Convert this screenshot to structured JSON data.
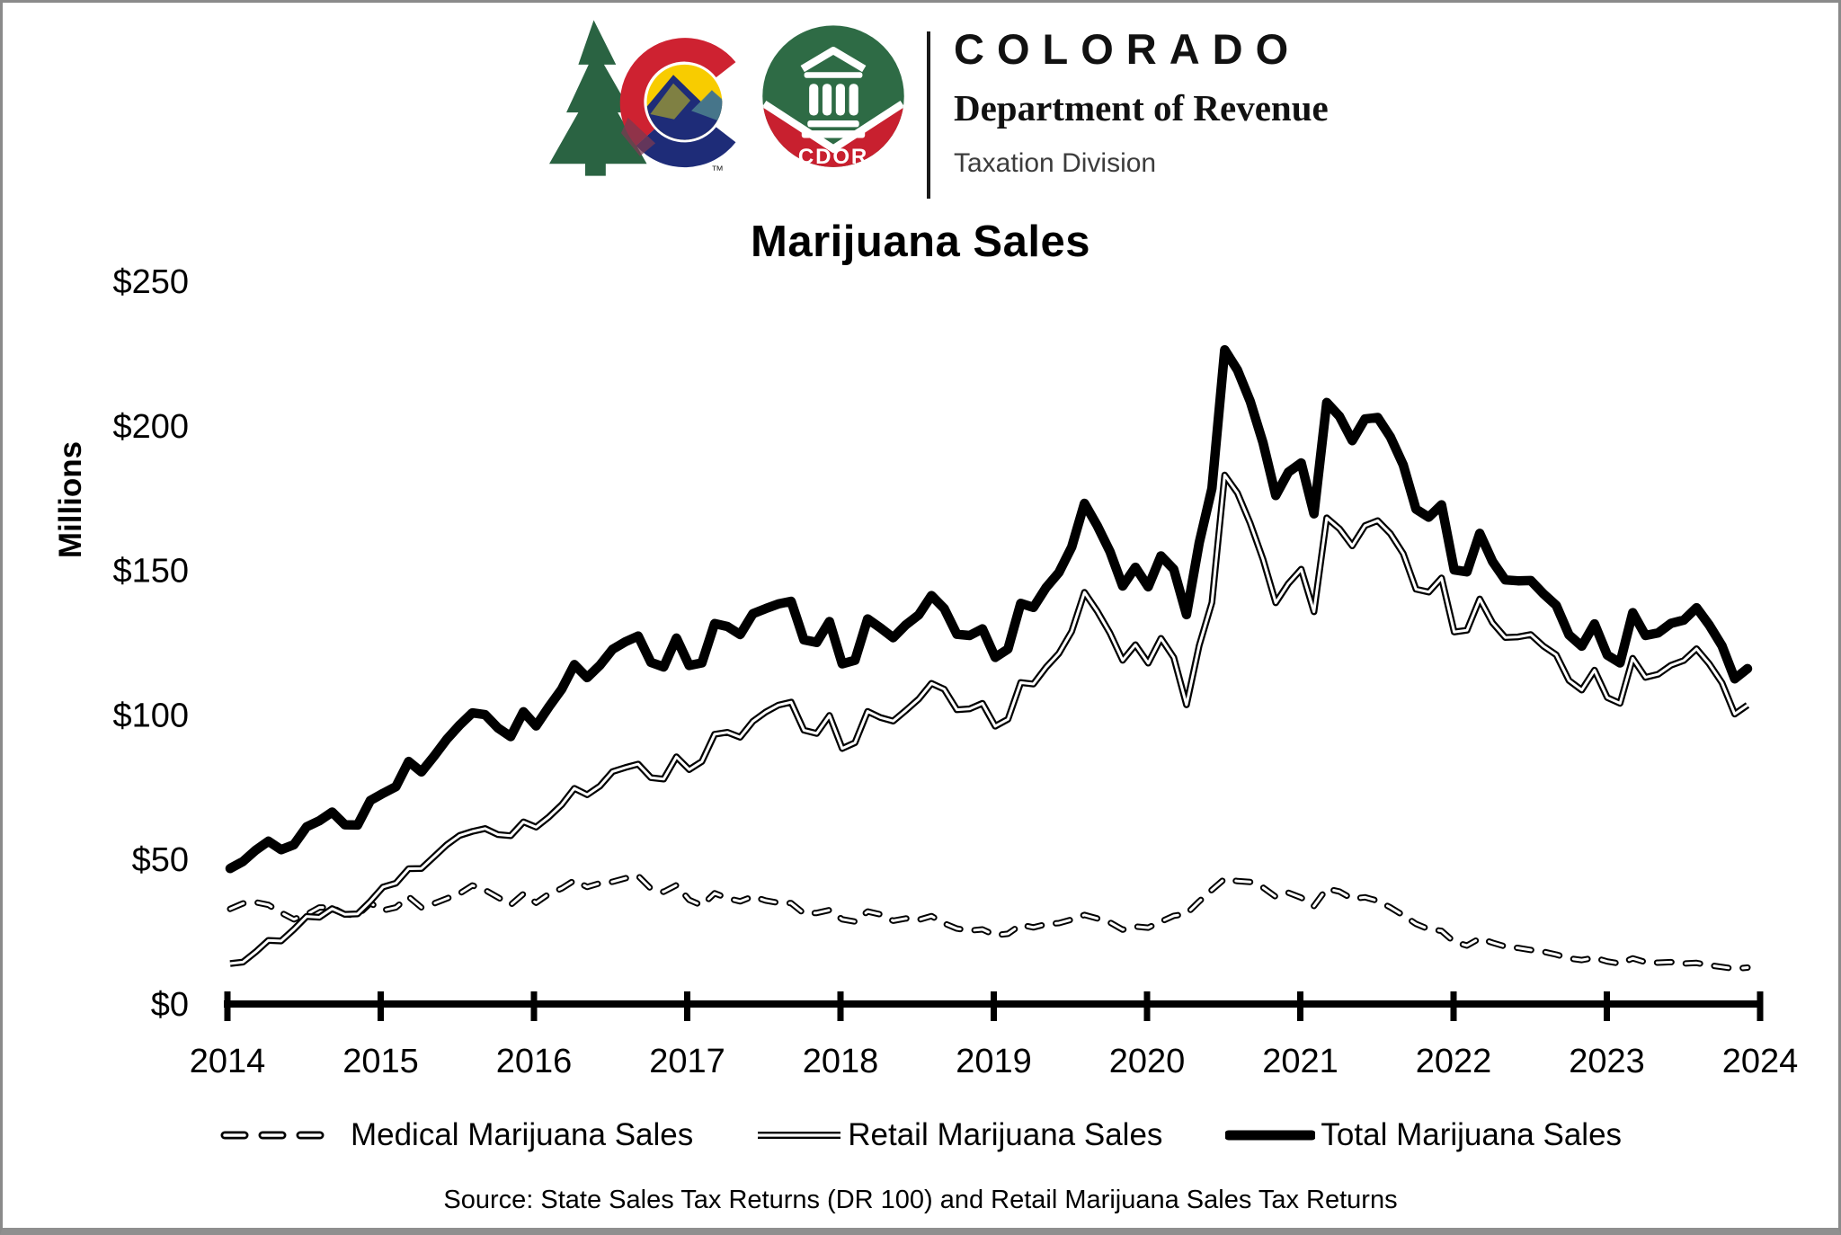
{
  "header": {
    "agency": "COLORADO",
    "department": "Department of Revenue",
    "division": "Taxation Division",
    "cdor_badge": "CDOR",
    "trademark": "™",
    "logo_colors": {
      "pine_green": "#2A6342",
      "c_red": "#CE2231",
      "c_blue": "#1E2C78",
      "sun_yellow": "#F8CC00",
      "mountain_olive": "#8A8A3D",
      "mountain_teal": "#4A7D8C",
      "overlap_maroon": "#7B3A52",
      "cdor_green": "#2E6B45",
      "cdor_red": "#C8202F"
    }
  },
  "chart_data": {
    "type": "line",
    "title": "Marijuana Sales",
    "y_axis_title": "Millions",
    "ylim": [
      0,
      250
    ],
    "y_ticks": [
      0,
      50,
      100,
      150,
      200,
      250
    ],
    "y_tick_labels": [
      "$0",
      "$50",
      "$100",
      "$150",
      "$200",
      "$250"
    ],
    "x_tick_labels": [
      "2014",
      "2015",
      "2016",
      "2017",
      "2018",
      "2019",
      "2020",
      "2021",
      "2022",
      "2023",
      "2024"
    ],
    "frequency": "monthly",
    "x_range": {
      "start": "2014-01",
      "end": "2023-12"
    },
    "grid": "off",
    "legend_position": "bottom",
    "line_color": "#000000",
    "series": [
      {
        "name": "Medical Marijuana Sales",
        "style": "dashed-hollow",
        "values": [
          32.9,
          34.8,
          35.2,
          34.3,
          31.6,
          29.3,
          31.0,
          33.4,
          33.4,
          31.0,
          30.7,
          34.9,
          32.4,
          33.4,
          37.1,
          33.4,
          34.8,
          36.5,
          38.2,
          41.0,
          39.4,
          36.9,
          34.3,
          38.1,
          35.0,
          38.1,
          40.0,
          42.8,
          40.5,
          41.8,
          42.3,
          43.5,
          44.3,
          39.9,
          38.8,
          41.1,
          36.0,
          34.1,
          38.3,
          36.6,
          35.5,
          37.2,
          35.8,
          35.0,
          34.9,
          31.3,
          31.5,
          32.5,
          29.3,
          28.5,
          32.0,
          31.0,
          28.8,
          29.6,
          29.1,
          30.4,
          27.9,
          26.1,
          25.4,
          25.8,
          23.8,
          24.3,
          27.4,
          26.5,
          27.6,
          28.0,
          29.2,
          30.8,
          29.6,
          28.2,
          25.7,
          26.8,
          26.4,
          28.5,
          30.5,
          31.2,
          35.5,
          39.5,
          43.3,
          42.5,
          42.2,
          40.3,
          37.1,
          38.5,
          36.8,
          33.9,
          39.9,
          38.9,
          36.4,
          36.9,
          35.7,
          33.4,
          30.7,
          27.7,
          25.9,
          25.3,
          21.5,
          20.2,
          22.7,
          21.2,
          19.9,
          19.4,
          18.7,
          18.1,
          17.1,
          15.8,
          15.2,
          16.0,
          14.7,
          14.0,
          15.8,
          14.5,
          14.3,
          14.5,
          14.0,
          14.2,
          13.4,
          12.8,
          12.2,
          12.6
        ]
      },
      {
        "name": "Retail Marijuana Sales",
        "style": "double-hollow",
        "values": [
          14.0,
          14.5,
          18.0,
          22.0,
          21.8,
          25.8,
          30.3,
          30.0,
          33.0,
          31.0,
          31.2,
          35.5,
          40.5,
          41.8,
          46.8,
          46.9,
          51.0,
          55.1,
          58.3,
          59.7,
          60.7,
          58.6,
          58.2,
          63.0,
          61.2,
          64.7,
          68.9,
          74.6,
          72.4,
          75.4,
          80.4,
          81.8,
          83.0,
          78.3,
          77.8,
          85.5,
          81.1,
          83.9,
          93.3,
          94.0,
          92.3,
          97.8,
          101.0,
          103.4,
          104.4,
          94.7,
          93.6,
          99.8,
          88.4,
          90.4,
          101.2,
          99.1,
          97.9,
          101.6,
          105.5,
          110.9,
          108.9,
          101.8,
          102.1,
          104.0,
          96.1,
          98.5,
          111.2,
          110.7,
          116.5,
          121.3,
          128.9,
          142.4,
          135.9,
          128.3,
          118.9,
          124.3,
          117.9,
          126.5,
          119.9,
          103.5,
          124.1,
          138.9,
          183.0,
          176.8,
          166.3,
          153.9,
          138.8,
          145.5,
          150.4,
          135.7,
          168.2,
          164.4,
          158.5,
          165.5,
          167.2,
          162.7,
          155.8,
          143.5,
          142.5,
          147.4,
          128.7,
          129.3,
          140.1,
          131.9,
          126.8,
          127.0,
          127.8,
          123.8,
          120.8,
          111.9,
          108.6,
          115.5,
          106.0,
          104.0,
          119.6,
          113.0,
          114.1,
          117.2,
          118.8,
          122.9,
          117.7,
          111.1,
          100.3,
          103.4
        ]
      },
      {
        "name": "Total Marijuana Sales",
        "style": "thick-solid",
        "values": [
          46.9,
          49.3,
          53.2,
          56.3,
          53.4,
          55.1,
          61.3,
          63.4,
          66.4,
          62.0,
          61.9,
          70.4,
          72.9,
          75.2,
          83.9,
          80.3,
          85.8,
          91.6,
          96.5,
          100.7,
          100.1,
          95.5,
          92.5,
          101.1,
          96.2,
          102.8,
          108.9,
          117.4,
          112.9,
          117.2,
          122.7,
          125.3,
          127.3,
          118.2,
          116.6,
          126.6,
          117.1,
          118.0,
          131.6,
          130.6,
          127.8,
          135.0,
          136.8,
          138.4,
          139.3,
          126.0,
          125.1,
          132.3,
          117.7,
          118.9,
          133.2,
          130.1,
          126.7,
          131.2,
          134.6,
          141.3,
          136.8,
          127.9,
          127.5,
          129.8,
          119.9,
          122.8,
          138.6,
          137.2,
          144.1,
          149.3,
          158.1,
          173.2,
          165.5,
          156.5,
          144.6,
          151.1,
          144.3,
          155.0,
          150.4,
          134.7,
          159.6,
          178.4,
          226.3,
          219.3,
          208.5,
          194.2,
          175.9,
          184.0,
          187.2,
          169.6,
          208.1,
          203.3,
          194.9,
          202.4,
          202.9,
          196.1,
          186.5,
          171.2,
          168.4,
          172.7,
          150.2,
          149.5,
          162.8,
          153.1,
          146.7,
          146.4,
          146.5,
          141.9,
          137.9,
          127.7,
          123.8,
          131.5,
          120.7,
          118.0,
          135.4,
          127.5,
          128.4,
          131.7,
          132.8,
          137.1,
          131.1,
          123.9,
          112.5,
          116.0
        ]
      }
    ],
    "source": "Source: State Sales Tax Returns (DR 100) and Retail Marijuana Sales Tax Returns"
  }
}
